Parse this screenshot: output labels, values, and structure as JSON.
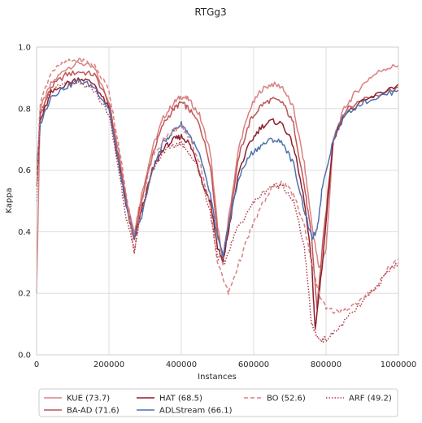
{
  "chart_data": {
    "type": "line",
    "title": "RTGg3",
    "xlabel": "Instances",
    "ylabel": "Kappa",
    "xlim": [
      0,
      1000000
    ],
    "ylim": [
      0,
      1.0
    ],
    "x_ticks": [
      0,
      200000,
      400000,
      600000,
      800000,
      1000000
    ],
    "x_tick_labels": [
      "0",
      "200000",
      "400000",
      "600000",
      "800000",
      "1000000"
    ],
    "y_ticks": [
      0,
      0.2,
      0.4,
      0.6,
      0.8,
      1.0
    ],
    "y_tick_labels": [
      "0.0",
      "0.2",
      "0.4",
      "0.6",
      "0.8",
      "1.0"
    ],
    "grid": true,
    "legend_position": "bottom",
    "series": [
      {
        "name": "KUE (73.7)",
        "color": "#d98080",
        "dash": "solid",
        "points": [
          [
            0,
            0.2
          ],
          [
            10000,
            0.8
          ],
          [
            40000,
            0.88
          ],
          [
            80000,
            0.93
          ],
          [
            120000,
            0.95
          ],
          [
            160000,
            0.93
          ],
          [
            200000,
            0.82
          ],
          [
            230000,
            0.64
          ],
          [
            250000,
            0.5
          ],
          [
            270000,
            0.4
          ],
          [
            290000,
            0.52
          ],
          [
            320000,
            0.67
          ],
          [
            350000,
            0.77
          ],
          [
            380000,
            0.82
          ],
          [
            400000,
            0.84
          ],
          [
            420000,
            0.83
          ],
          [
            450000,
            0.78
          ],
          [
            480000,
            0.66
          ],
          [
            500000,
            0.42
          ],
          [
            515000,
            0.3
          ],
          [
            530000,
            0.44
          ],
          [
            560000,
            0.68
          ],
          [
            590000,
            0.8
          ],
          [
            620000,
            0.86
          ],
          [
            650000,
            0.88
          ],
          [
            680000,
            0.87
          ],
          [
            710000,
            0.8
          ],
          [
            740000,
            0.62
          ],
          [
            760000,
            0.43
          ],
          [
            780000,
            0.28
          ],
          [
            800000,
            0.34
          ],
          [
            820000,
            0.7
          ],
          [
            850000,
            0.8
          ],
          [
            880000,
            0.85
          ],
          [
            920000,
            0.9
          ],
          [
            960000,
            0.93
          ],
          [
            1000000,
            0.94
          ]
        ]
      },
      {
        "name": "BA-AD (71.6)",
        "color": "#c05555",
        "dash": "solid",
        "points": [
          [
            0,
            0.55
          ],
          [
            10000,
            0.78
          ],
          [
            40000,
            0.87
          ],
          [
            80000,
            0.91
          ],
          [
            120000,
            0.92
          ],
          [
            160000,
            0.91
          ],
          [
            200000,
            0.82
          ],
          [
            230000,
            0.62
          ],
          [
            250000,
            0.48
          ],
          [
            270000,
            0.38
          ],
          [
            290000,
            0.5
          ],
          [
            320000,
            0.65
          ],
          [
            350000,
            0.75
          ],
          [
            380000,
            0.8
          ],
          [
            400000,
            0.82
          ],
          [
            420000,
            0.8
          ],
          [
            450000,
            0.75
          ],
          [
            480000,
            0.62
          ],
          [
            500000,
            0.4
          ],
          [
            515000,
            0.32
          ],
          [
            530000,
            0.42
          ],
          [
            560000,
            0.65
          ],
          [
            590000,
            0.76
          ],
          [
            620000,
            0.81
          ],
          [
            650000,
            0.83
          ],
          [
            680000,
            0.82
          ],
          [
            710000,
            0.75
          ],
          [
            740000,
            0.55
          ],
          [
            760000,
            0.38
          ],
          [
            775000,
            0.15
          ],
          [
            790000,
            0.35
          ],
          [
            820000,
            0.7
          ],
          [
            850000,
            0.79
          ],
          [
            900000,
            0.83
          ],
          [
            950000,
            0.85
          ],
          [
            1000000,
            0.87
          ]
        ]
      },
      {
        "name": "HAT (68.5)",
        "color": "#8c1f2a",
        "dash": "solid",
        "points": [
          [
            0,
            0.55
          ],
          [
            10000,
            0.76
          ],
          [
            40000,
            0.85
          ],
          [
            80000,
            0.88
          ],
          [
            120000,
            0.9
          ],
          [
            160000,
            0.88
          ],
          [
            200000,
            0.8
          ],
          [
            230000,
            0.6
          ],
          [
            250000,
            0.47
          ],
          [
            270000,
            0.37
          ],
          [
            290000,
            0.47
          ],
          [
            320000,
            0.6
          ],
          [
            350000,
            0.67
          ],
          [
            380000,
            0.7
          ],
          [
            400000,
            0.71
          ],
          [
            420000,
            0.69
          ],
          [
            440000,
            0.64
          ],
          [
            460000,
            0.55
          ],
          [
            480000,
            0.5
          ],
          [
            500000,
            0.35
          ],
          [
            515000,
            0.3
          ],
          [
            530000,
            0.4
          ],
          [
            560000,
            0.6
          ],
          [
            590000,
            0.69
          ],
          [
            620000,
            0.74
          ],
          [
            650000,
            0.76
          ],
          [
            680000,
            0.75
          ],
          [
            710000,
            0.68
          ],
          [
            740000,
            0.5
          ],
          [
            760000,
            0.3
          ],
          [
            770000,
            0.08
          ],
          [
            790000,
            0.3
          ],
          [
            820000,
            0.7
          ],
          [
            850000,
            0.78
          ],
          [
            900000,
            0.82
          ],
          [
            950000,
            0.85
          ],
          [
            1000000,
            0.88
          ]
        ]
      },
      {
        "name": "ADLStream (66.1)",
        "color": "#4c72b0",
        "dash": "solid",
        "points": [
          [
            0,
            0.6
          ],
          [
            10000,
            0.75
          ],
          [
            40000,
            0.84
          ],
          [
            80000,
            0.87
          ],
          [
            120000,
            0.89
          ],
          [
            160000,
            0.87
          ],
          [
            200000,
            0.8
          ],
          [
            230000,
            0.6
          ],
          [
            250000,
            0.47
          ],
          [
            270000,
            0.38
          ],
          [
            290000,
            0.45
          ],
          [
            320000,
            0.6
          ],
          [
            350000,
            0.69
          ],
          [
            380000,
            0.73
          ],
          [
            400000,
            0.75
          ],
          [
            420000,
            0.72
          ],
          [
            450000,
            0.65
          ],
          [
            480000,
            0.52
          ],
          [
            500000,
            0.38
          ],
          [
            515000,
            0.32
          ],
          [
            530000,
            0.42
          ],
          [
            560000,
            0.58
          ],
          [
            590000,
            0.65
          ],
          [
            620000,
            0.68
          ],
          [
            650000,
            0.7
          ],
          [
            680000,
            0.69
          ],
          [
            710000,
            0.62
          ],
          [
            740000,
            0.47
          ],
          [
            760000,
            0.38
          ],
          [
            775000,
            0.4
          ],
          [
            790000,
            0.55
          ],
          [
            820000,
            0.7
          ],
          [
            850000,
            0.78
          ],
          [
            900000,
            0.82
          ],
          [
            950000,
            0.84
          ],
          [
            1000000,
            0.86
          ]
        ]
      },
      {
        "name": "BO (52.6)",
        "color": "#d98080",
        "dash": "dashed",
        "points": [
          [
            0,
            0.55
          ],
          [
            10000,
            0.82
          ],
          [
            40000,
            0.92
          ],
          [
            80000,
            0.95
          ],
          [
            120000,
            0.96
          ],
          [
            160000,
            0.94
          ],
          [
            200000,
            0.86
          ],
          [
            230000,
            0.66
          ],
          [
            250000,
            0.5
          ],
          [
            270000,
            0.33
          ],
          [
            290000,
            0.5
          ],
          [
            320000,
            0.64
          ],
          [
            350000,
            0.7
          ],
          [
            380000,
            0.73
          ],
          [
            400000,
            0.74
          ],
          [
            420000,
            0.71
          ],
          [
            450000,
            0.63
          ],
          [
            480000,
            0.48
          ],
          [
            500000,
            0.3
          ],
          [
            530000,
            0.2
          ],
          [
            560000,
            0.3
          ],
          [
            590000,
            0.4
          ],
          [
            620000,
            0.48
          ],
          [
            650000,
            0.54
          ],
          [
            680000,
            0.56
          ],
          [
            710000,
            0.52
          ],
          [
            740000,
            0.42
          ],
          [
            760000,
            0.3
          ],
          [
            780000,
            0.2
          ],
          [
            800000,
            0.15
          ],
          [
            830000,
            0.14
          ],
          [
            860000,
            0.15
          ],
          [
            900000,
            0.18
          ],
          [
            940000,
            0.22
          ],
          [
            970000,
            0.28
          ],
          [
            1000000,
            0.31
          ]
        ]
      },
      {
        "name": "ARF (49.2)",
        "color": "#b03a48",
        "dash": "dotted",
        "points": [
          [
            0,
            0.5
          ],
          [
            10000,
            0.78
          ],
          [
            40000,
            0.86
          ],
          [
            80000,
            0.88
          ],
          [
            120000,
            0.88
          ],
          [
            160000,
            0.86
          ],
          [
            200000,
            0.78
          ],
          [
            230000,
            0.58
          ],
          [
            250000,
            0.43
          ],
          [
            270000,
            0.34
          ],
          [
            290000,
            0.47
          ],
          [
            320000,
            0.6
          ],
          [
            350000,
            0.66
          ],
          [
            380000,
            0.68
          ],
          [
            400000,
            0.69
          ],
          [
            420000,
            0.66
          ],
          [
            450000,
            0.6
          ],
          [
            480000,
            0.46
          ],
          [
            500000,
            0.32
          ],
          [
            520000,
            0.3
          ],
          [
            550000,
            0.4
          ],
          [
            590000,
            0.48
          ],
          [
            620000,
            0.52
          ],
          [
            650000,
            0.55
          ],
          [
            680000,
            0.55
          ],
          [
            710000,
            0.5
          ],
          [
            740000,
            0.35
          ],
          [
            760000,
            0.1
          ],
          [
            780000,
            0.05
          ],
          [
            800000,
            0.05
          ],
          [
            830000,
            0.08
          ],
          [
            860000,
            0.12
          ],
          [
            900000,
            0.17
          ],
          [
            940000,
            0.22
          ],
          [
            970000,
            0.27
          ],
          [
            1000000,
            0.3
          ]
        ]
      }
    ]
  }
}
